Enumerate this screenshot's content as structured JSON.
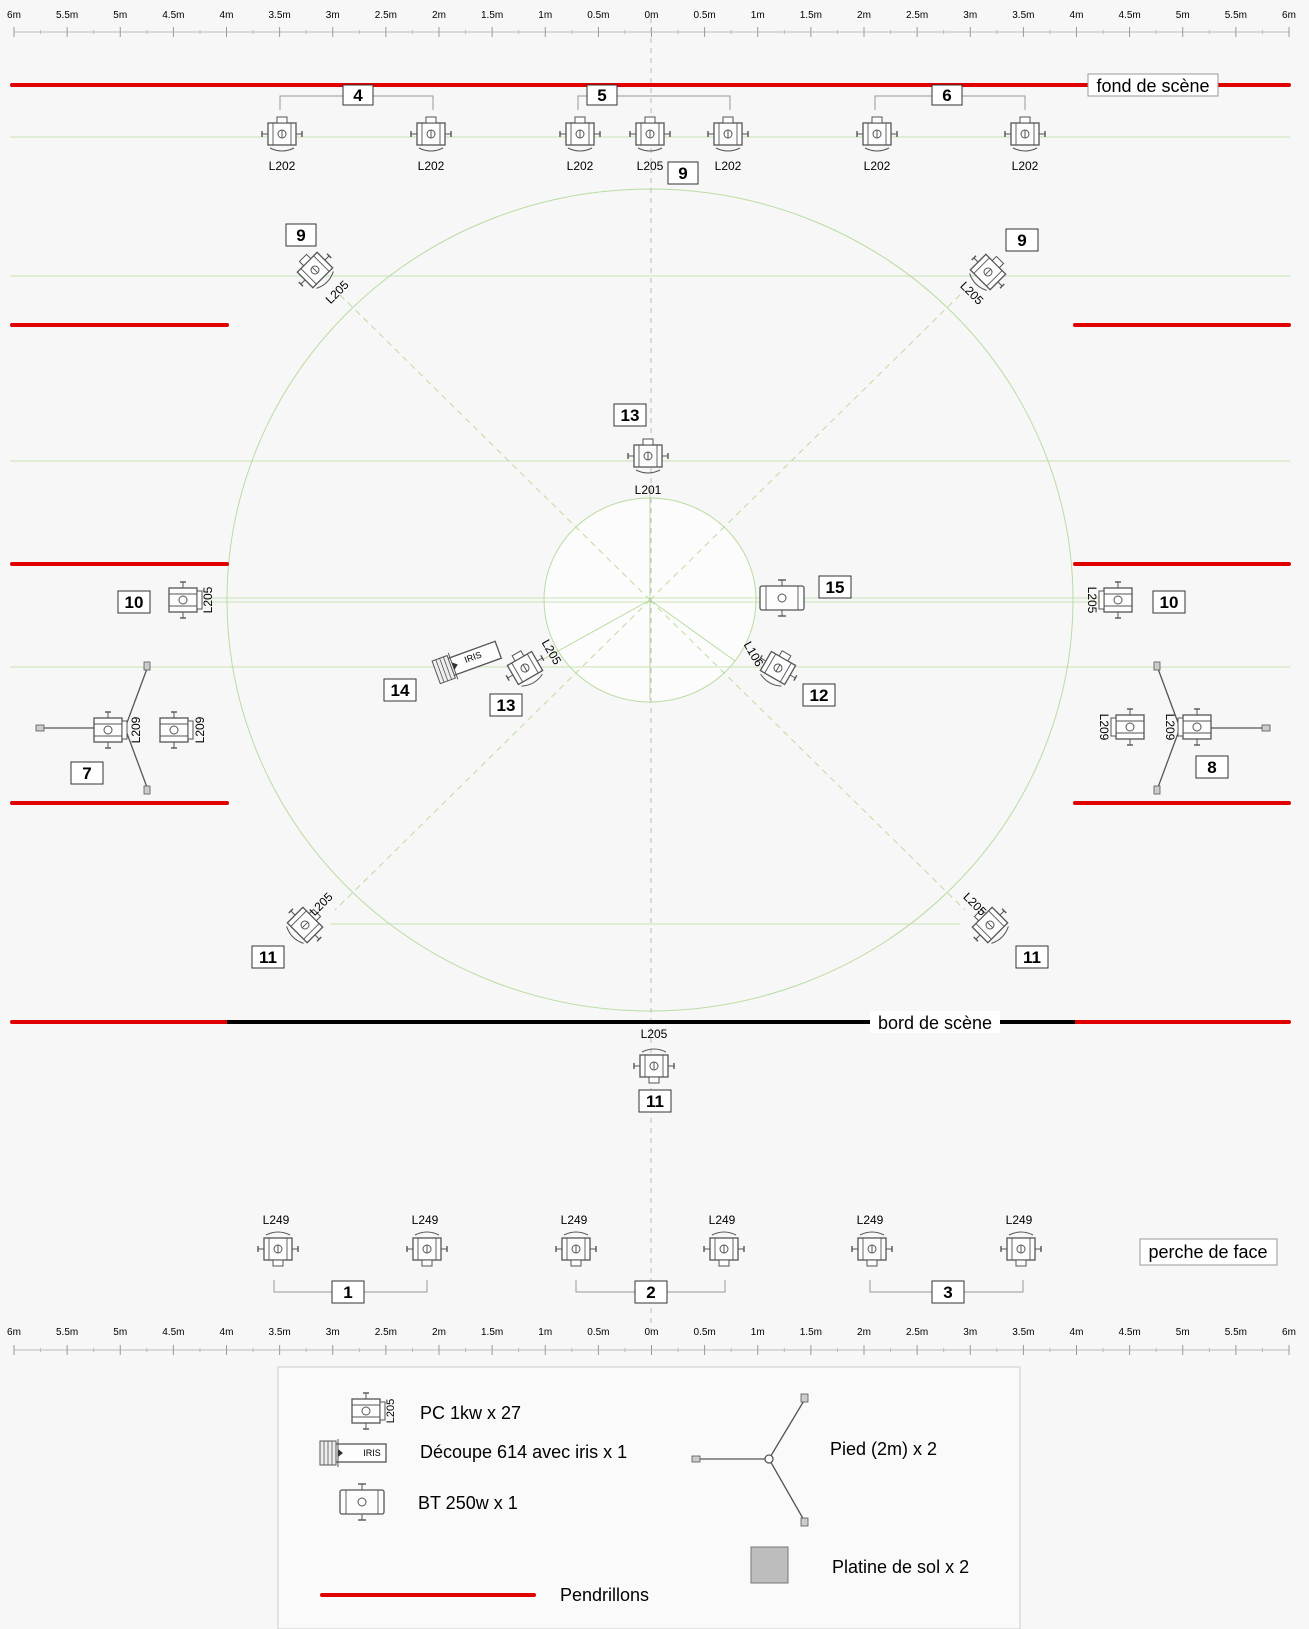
{
  "ruler_ticks": [
    "6m",
    "5.5m",
    "5m",
    "4.5m",
    "4m",
    "3.5m",
    "3m",
    "2.5m",
    "2m",
    "1.5m",
    "1m",
    "0.5m",
    "0m",
    "0.5m",
    "1m",
    "1.5m",
    "2m",
    "2.5m",
    "3m",
    "3.5m",
    "4m",
    "4.5m",
    "5m",
    "5.5m",
    "6m"
  ],
  "labels": {
    "fond": "fond de scène",
    "bord": "bord de scène",
    "perche": "perche de face"
  },
  "groups": {
    "g4": "4",
    "g5": "5",
    "g6": "6",
    "g9a": "9",
    "g9b": "9",
    "g9c": "9",
    "g13a": "13",
    "g13b": "13",
    "g10a": "10",
    "g10b": "10",
    "g15": "15",
    "g14": "14",
    "g12": "12",
    "g7": "7",
    "g8": "8",
    "g11a": "11",
    "g11b": "11",
    "g11c": "11",
    "g1": "1",
    "g2": "2",
    "g3": "3"
  },
  "gels": {
    "back": [
      "L202",
      "L202",
      "L202",
      "L205",
      "L202",
      "L202",
      "L202"
    ],
    "g9a": "L205",
    "g9b": "L205",
    "g13a": "L201",
    "g13b": "L205",
    "g10a": "L205",
    "g10b": "L205",
    "g12": "L106",
    "g7a": "L209",
    "g7b": "L209",
    "g8a": "L209",
    "g8b": "L209",
    "g11a": "L205",
    "g11b": "L205",
    "g11c": "L205",
    "face": [
      "L249",
      "L249",
      "L249",
      "L249",
      "L249",
      "L249"
    ],
    "iris": "IRIS"
  },
  "legend": {
    "pc": "PC 1kw x 27",
    "pc_gel": "L205",
    "decoupe": "Découpe 614 avec iris x 1",
    "decoupe_tag": "IRIS",
    "bt": "BT 250w x 1",
    "pied": "Pied (2m) x 2",
    "platine": "Platine de sol x 2",
    "pendrillons": "Pendrillons"
  },
  "colors": {
    "pendrillon": "#e00000",
    "bord": "#000000",
    "guide": "#b9dca0",
    "fixture": "#555555",
    "axis": "#bbbbbb",
    "platine": "#bdbdbd"
  }
}
